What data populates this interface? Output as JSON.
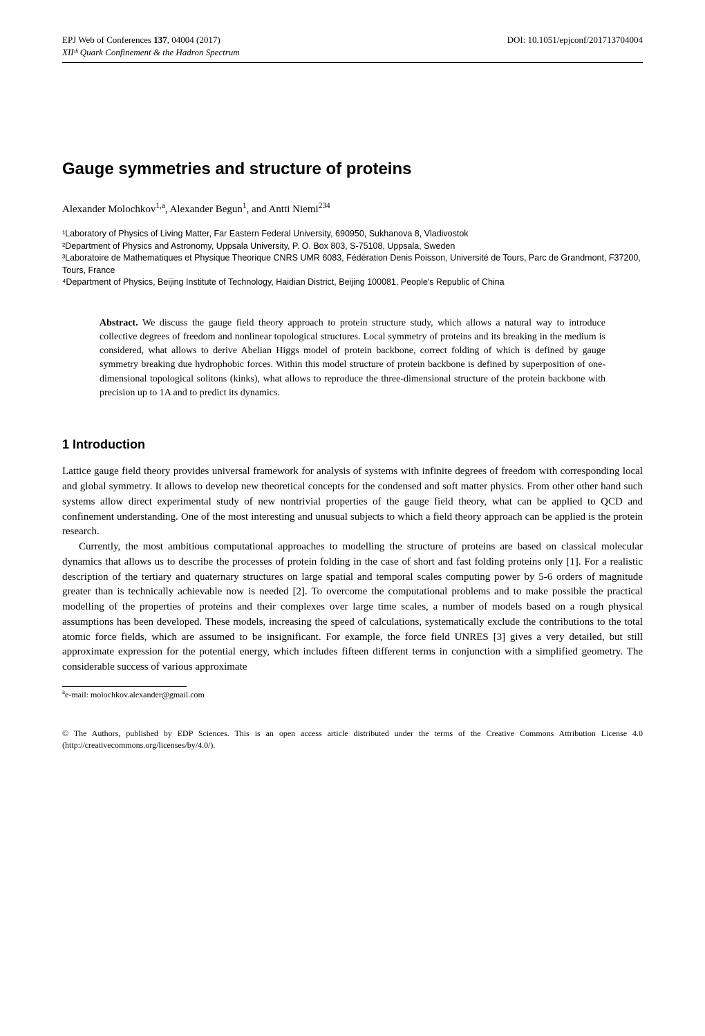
{
  "header": {
    "conference": "EPJ Web of Conferences",
    "volume": "137",
    "article": "04004 (2017)",
    "doi": "DOI: 10.1051/epjconf/201713704004",
    "subtitle": "XIIᵗʰ Quark Confinement & the Hadron Spectrum"
  },
  "title": "Gauge symmetries and structure of proteins",
  "authors_html": "Alexander Molochkov<sup>1,a</sup>, Alexander Begun<sup>1</sup>, and Antti Niemi<sup>234</sup>",
  "affiliations": [
    "¹Laboratory of Physics of Living Matter, Far Eastern Federal University, 690950, Sukhanova 8, Vladivostok",
    "²Department of Physics and Astronomy, Uppsala University, P. O. Box 803, S-75108, Uppsala, Sweden",
    "³Laboratoire de Mathematiques et Physique Theorique CNRS UMR 6083, Fédération Denis Poisson, Université de Tours, Parc de Grandmont, F37200, Tours, France",
    "⁴Department of Physics, Beijing Institute of Technology, Haidian District, Beijing 100081, People's Republic of China"
  ],
  "abstract": {
    "label": "Abstract.",
    "text": " We discuss the gauge field theory approach to protein structure study, which allows a natural way to introduce collective degrees of freedom and nonlinear topological structures. Local symmetry of proteins and its breaking in the medium is considered, what allows to derive Abelian Higgs model of protein backbone, correct folding of which is defined by gauge symmetry breaking due hydrophobic forces. Within this model structure of protein backbone is defined by superposition of one-dimensional topological solitons (kinks), what allows to reproduce the three-dimensional structure of the protein backbone with precision up to 1A and to predict its dynamics."
  },
  "section1": {
    "heading": "1 Introduction",
    "para1": "Lattice gauge field theory provides universal framework for analysis of systems with infinite degrees of freedom with corresponding local and global symmetry. It allows to develop new theoretical concepts for the condensed and soft matter physics. From other other hand such systems allow direct experimental study of new nontrivial properties of the gauge field theory, what can be applied to QCD and confinement understanding. One of the most interesting and unusual subjects to which a field theory approach can be applied is the protein research.",
    "para2": "Currently, the most ambitious computational approaches to modelling the structure of proteins are based on classical molecular dynamics that allows us to describe the processes of protein folding in the case of short and fast folding proteins only [1]. For a realistic description of the tertiary and quaternary structures on large spatial and temporal scales computing power by 5-6 orders of magnitude greater than is technically achievable now is needed [2]. To overcome the computational problems and to make possible the practical modelling of the properties of proteins and their complexes over large time scales, a number of models based on a rough physical assumptions has been developed. These models, increasing the speed of calculations, systematically exclude the contributions to the total atomic force fields, which are assumed to be insignificant. For example, the force field UNRES [3] gives a very detailed, but still approximate expression for the potential energy, which includes fifteen different terms in conjunction with a simplified geometry. The considerable success of various approximate"
  },
  "footnote": {
    "marker": "a",
    "text": "e-mail: molochkov.alexander@gmail.com"
  },
  "copyright": "© The Authors, published by EDP Sciences. This is an open access article distributed under the terms of the Creative Commons Attribution License 4.0 (http://creativecommons.org/licenses/by/4.0/).",
  "style": {
    "page_bg": "#ffffff",
    "text_color": "#000000",
    "divider_color": "#000000",
    "title_fontsize": 24,
    "body_fontsize": 15,
    "affil_fontsize": 12.5,
    "abstract_fontsize": 14,
    "footnote_fontsize": 12,
    "heading_fontsize": 18
  }
}
